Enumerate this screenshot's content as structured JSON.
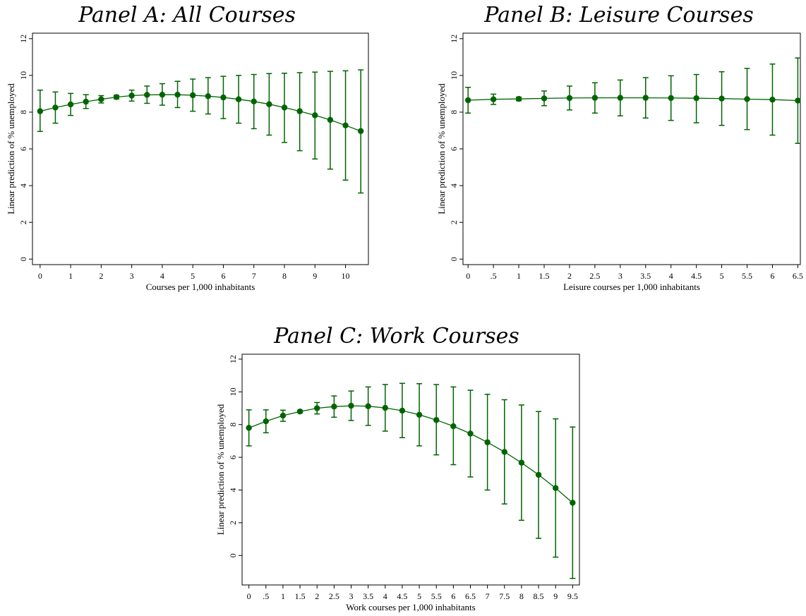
{
  "chart_data": [
    {
      "type": "line",
      "title": "Panel A: All Courses",
      "xlabel": "Courses per 1,000 inhabitants",
      "ylabel": "Linear prediction of % unemployed",
      "xlim": [
        -0.25,
        10.75
      ],
      "ylim": [
        -0.3,
        12.3
      ],
      "x_ticks": [
        0,
        1,
        2,
        3,
        4,
        5,
        6,
        7,
        8,
        9,
        10
      ],
      "x_tick_labels": [
        "0",
        "1",
        "2",
        "3",
        "4",
        "5",
        "6",
        "7",
        "8",
        "9",
        "10"
      ],
      "y_ticks": [
        0,
        2,
        4,
        6,
        8,
        10,
        12
      ],
      "y_tick_labels": [
        "0",
        "2",
        "4",
        "6",
        "8",
        "10",
        "12"
      ],
      "series": [
        {
          "x": [
            0,
            0.5,
            1,
            1.5,
            2,
            2.5,
            3,
            3.5,
            4,
            4.5,
            5,
            5.5,
            6,
            6.5,
            7,
            7.5,
            8,
            8.5,
            9,
            9.5,
            10,
            10.5
          ],
          "y": [
            8.05,
            8.25,
            8.42,
            8.57,
            8.7,
            8.82,
            8.9,
            8.94,
            8.95,
            8.95,
            8.92,
            8.87,
            8.8,
            8.7,
            8.58,
            8.43,
            8.25,
            8.05,
            7.83,
            7.58,
            7.28,
            6.97
          ],
          "ci_low": [
            6.95,
            7.4,
            7.82,
            8.2,
            8.5,
            8.72,
            8.6,
            8.48,
            8.38,
            8.25,
            8.05,
            7.9,
            7.65,
            7.4,
            7.1,
            6.75,
            6.35,
            5.9,
            5.45,
            4.9,
            4.3,
            3.6
          ],
          "ci_high": [
            9.2,
            9.1,
            9.02,
            8.95,
            8.9,
            8.92,
            9.2,
            9.42,
            9.55,
            9.68,
            9.8,
            9.88,
            9.95,
            10.0,
            10.05,
            10.1,
            10.12,
            10.15,
            10.18,
            10.22,
            10.25,
            10.3
          ]
        }
      ]
    },
    {
      "type": "line",
      "title": "Panel B: Leisure Courses",
      "xlabel": "Leisure courses per 1,000 inhabitants",
      "ylabel": "Linear prediction of % unemployed",
      "xlim": [
        -0.1,
        6.55
      ],
      "ylim": [
        -0.3,
        12.3
      ],
      "x_ticks": [
        0,
        0.5,
        1,
        1.5,
        2,
        2.5,
        3,
        3.5,
        4,
        4.5,
        5,
        5.5,
        6,
        6.5
      ],
      "x_tick_labels": [
        "0",
        ".5",
        "1",
        "1.5",
        "2",
        "2.5",
        "3",
        "3.5",
        "4",
        "4.5",
        "5",
        "5.5",
        "6",
        "6.5"
      ],
      "y_ticks": [
        0,
        2,
        4,
        6,
        8,
        10,
        12
      ],
      "y_tick_labels": [
        "0",
        "2",
        "4",
        "6",
        "8",
        "10",
        "12"
      ],
      "series": [
        {
          "x": [
            0,
            0.5,
            1,
            1.5,
            2,
            2.5,
            3,
            3.5,
            4,
            4.5,
            5,
            5.5,
            6,
            6.5
          ],
          "y": [
            8.65,
            8.7,
            8.72,
            8.75,
            8.77,
            8.78,
            8.78,
            8.78,
            8.77,
            8.76,
            8.74,
            8.71,
            8.68,
            8.63
          ],
          "ci_low": [
            7.95,
            8.42,
            8.62,
            8.35,
            8.12,
            7.95,
            7.8,
            7.68,
            7.55,
            7.42,
            7.28,
            7.05,
            6.75,
            6.3
          ],
          "ci_high": [
            9.35,
            8.98,
            8.82,
            9.15,
            9.42,
            9.6,
            9.75,
            9.88,
            9.98,
            10.05,
            10.2,
            10.38,
            10.62,
            10.95
          ]
        }
      ]
    },
    {
      "type": "line",
      "title": "Panel C: Work Courses",
      "xlabel": "Work courses per 1,000 inhabitants",
      "ylabel": "Linear prediction of % unemployed",
      "xlim": [
        -0.2,
        9.7
      ],
      "ylim": [
        -1.8,
        12.3
      ],
      "x_ticks": [
        0,
        0.5,
        1,
        1.5,
        2,
        2.5,
        3,
        3.5,
        4,
        4.5,
        5,
        5.5,
        6,
        6.5,
        7,
        7.5,
        8,
        8.5,
        9,
        9.5
      ],
      "x_tick_labels": [
        "0",
        ".5",
        "1",
        "1.5",
        "2",
        "2.5",
        "3",
        "3.5",
        "4",
        "4.5",
        "5",
        "5.5",
        "6",
        "6.5",
        "7",
        "7.5",
        "8",
        "8.5",
        "9",
        "9.5"
      ],
      "y_ticks": [
        0,
        2,
        4,
        6,
        8,
        10,
        12
      ],
      "y_tick_labels": [
        "0",
        "2",
        "4",
        "6",
        "8",
        "10",
        "12"
      ],
      "series": [
        {
          "x": [
            0,
            0.5,
            1,
            1.5,
            2,
            2.5,
            3,
            3.5,
            4,
            4.5,
            5,
            5.5,
            6,
            6.5,
            7,
            7.5,
            8,
            8.5,
            9,
            9.5
          ],
          "y": [
            7.8,
            8.2,
            8.55,
            8.8,
            9.0,
            9.1,
            9.15,
            9.12,
            9.02,
            8.85,
            8.6,
            8.28,
            7.9,
            7.45,
            6.92,
            6.33,
            5.67,
            4.93,
            4.12,
            3.22
          ],
          "ci_low": [
            6.7,
            7.5,
            8.2,
            8.72,
            8.65,
            8.45,
            8.25,
            7.95,
            7.6,
            7.2,
            6.7,
            6.15,
            5.55,
            4.8,
            4.0,
            3.15,
            2.15,
            1.05,
            -0.1,
            -1.4
          ],
          "ci_high": [
            8.9,
            8.9,
            8.88,
            8.88,
            9.35,
            9.75,
            10.05,
            10.3,
            10.45,
            10.52,
            10.5,
            10.45,
            10.3,
            10.1,
            9.85,
            9.52,
            9.2,
            8.8,
            8.35,
            7.85
          ]
        }
      ]
    }
  ]
}
